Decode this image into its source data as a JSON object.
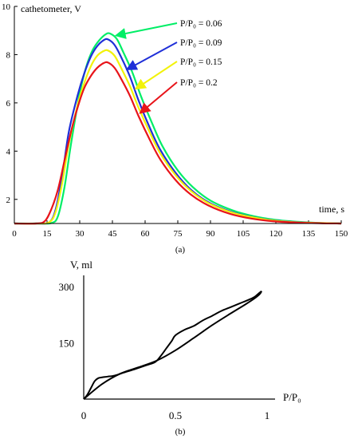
{
  "chart_data": [
    {
      "type": "line",
      "panel_label": "(a)",
      "ylabel": "cathetometer, V",
      "xlabel": "time, s",
      "xlim": [
        0,
        150
      ],
      "ylim": [
        1,
        10
      ],
      "xticks": [
        "0",
        "15",
        "30",
        "45",
        "60",
        "75",
        "90",
        "105",
        "120",
        "135",
        "150"
      ],
      "yticks": [
        "2",
        "4",
        "6",
        "8",
        "10"
      ],
      "grid": false,
      "legend_placement": "top-right, with arrows pointing to curves",
      "series": [
        {
          "name": "P/P₀ = 0.06",
          "color": "#00ee66",
          "x": [
            0,
            10,
            17,
            20,
            23,
            26,
            30,
            33,
            36,
            39,
            42,
            44,
            47,
            50,
            54,
            58,
            63,
            68,
            75,
            82,
            90,
            100,
            110,
            120,
            130,
            140,
            150
          ],
          "y": [
            1.0,
            1.0,
            1.02,
            1.3,
            2.5,
            4.3,
            6.4,
            7.5,
            8.2,
            8.6,
            8.85,
            8.87,
            8.65,
            8.1,
            7.3,
            6.3,
            5.2,
            4.2,
            3.2,
            2.5,
            1.95,
            1.55,
            1.3,
            1.15,
            1.07,
            1.02,
            1.0
          ],
          "legend_arrow_target": {
            "x": 47,
            "y": 8.8
          }
        },
        {
          "name": "P/P₀ = 0.09",
          "color": "#1f2fd8",
          "x": [
            0,
            10,
            16,
            19,
            22,
            25,
            29,
            32,
            35,
            38,
            41,
            43,
            46,
            49,
            53,
            57,
            62,
            67,
            74,
            81,
            89,
            99,
            109,
            119,
            129,
            140,
            150
          ],
          "y": [
            1.0,
            1.0,
            1.05,
            1.6,
            3.0,
            4.8,
            6.3,
            7.2,
            7.9,
            8.35,
            8.6,
            8.63,
            8.4,
            7.9,
            7.1,
            6.1,
            5.0,
            4.05,
            3.1,
            2.4,
            1.88,
            1.5,
            1.27,
            1.13,
            1.06,
            1.02,
            1.0
          ],
          "legend_arrow_target": {
            "x": 52,
            "y": 7.4
          }
        },
        {
          "name": "P/P₀ = 0.15",
          "color": "#f2f20a",
          "x": [
            0,
            10,
            16,
            19,
            22,
            25,
            29,
            32,
            35,
            38,
            41,
            43,
            46,
            49,
            53,
            57,
            62,
            67,
            74,
            81,
            89,
            99,
            109,
            119,
            129,
            140,
            150
          ],
          "y": [
            1.0,
            1.0,
            1.05,
            1.5,
            2.7,
            4.3,
            5.9,
            6.8,
            7.5,
            7.95,
            8.15,
            8.17,
            7.95,
            7.45,
            6.7,
            5.8,
            4.8,
            3.9,
            3.0,
            2.35,
            1.85,
            1.48,
            1.26,
            1.12,
            1.05,
            1.02,
            1.0
          ],
          "legend_arrow_target": {
            "x": 56,
            "y": 6.6
          }
        },
        {
          "name": "P/P₀ = 0.2",
          "color": "#e8141a",
          "x": [
            0,
            10,
            14,
            17,
            20,
            23,
            26,
            29,
            32,
            35,
            38,
            41,
            43,
            46,
            49,
            53,
            57,
            62,
            67,
            74,
            81,
            89,
            99,
            109,
            119,
            129,
            140,
            150
          ],
          "y": [
            1.0,
            1.0,
            1.1,
            1.6,
            2.4,
            3.6,
            4.8,
            5.8,
            6.6,
            7.1,
            7.45,
            7.65,
            7.67,
            7.45,
            7.0,
            6.3,
            5.45,
            4.5,
            3.65,
            2.8,
            2.2,
            1.75,
            1.4,
            1.2,
            1.09,
            1.04,
            1.01,
            1.0
          ],
          "legend_arrow_target": {
            "x": 58,
            "y": 5.6
          }
        }
      ]
    },
    {
      "type": "line",
      "panel_label": "(b)",
      "ylabel": "V, ml",
      "xlabel": "P/P₀",
      "xlim": [
        0,
        1
      ],
      "ylim": [
        0,
        330
      ],
      "xticks": [
        "0",
        "0.5",
        "1"
      ],
      "yticks": [
        "150",
        "300"
      ],
      "grid": false,
      "series": [
        {
          "color": "#000000",
          "x": [
            0,
            0.02,
            0.04,
            0.06,
            0.08,
            0.1,
            0.13,
            0.17,
            0.22,
            0.28,
            0.34,
            0.39,
            0.42,
            0.45,
            0.48,
            0.5,
            0.55,
            0.6,
            0.65,
            0.7,
            0.75,
            0.8,
            0.85,
            0.9,
            0.93,
            0.95,
            0.97
          ],
          "y": [
            0,
            12,
            30,
            48,
            56,
            58,
            60,
            63,
            71,
            80,
            90,
            99,
            115,
            135,
            155,
            170,
            185,
            195,
            210,
            222,
            235,
            245,
            255,
            265,
            272,
            280,
            288
          ]
        },
        {
          "color": "#000000",
          "x": [
            0,
            0.1,
            0.2,
            0.3,
            0.4,
            0.5,
            0.6,
            0.7,
            0.8,
            0.88,
            0.93,
            0.96,
            0.97
          ],
          "y": [
            0,
            40,
            68,
            85,
            103,
            130,
            163,
            197,
            228,
            252,
            268,
            280,
            288
          ]
        }
      ]
    }
  ]
}
